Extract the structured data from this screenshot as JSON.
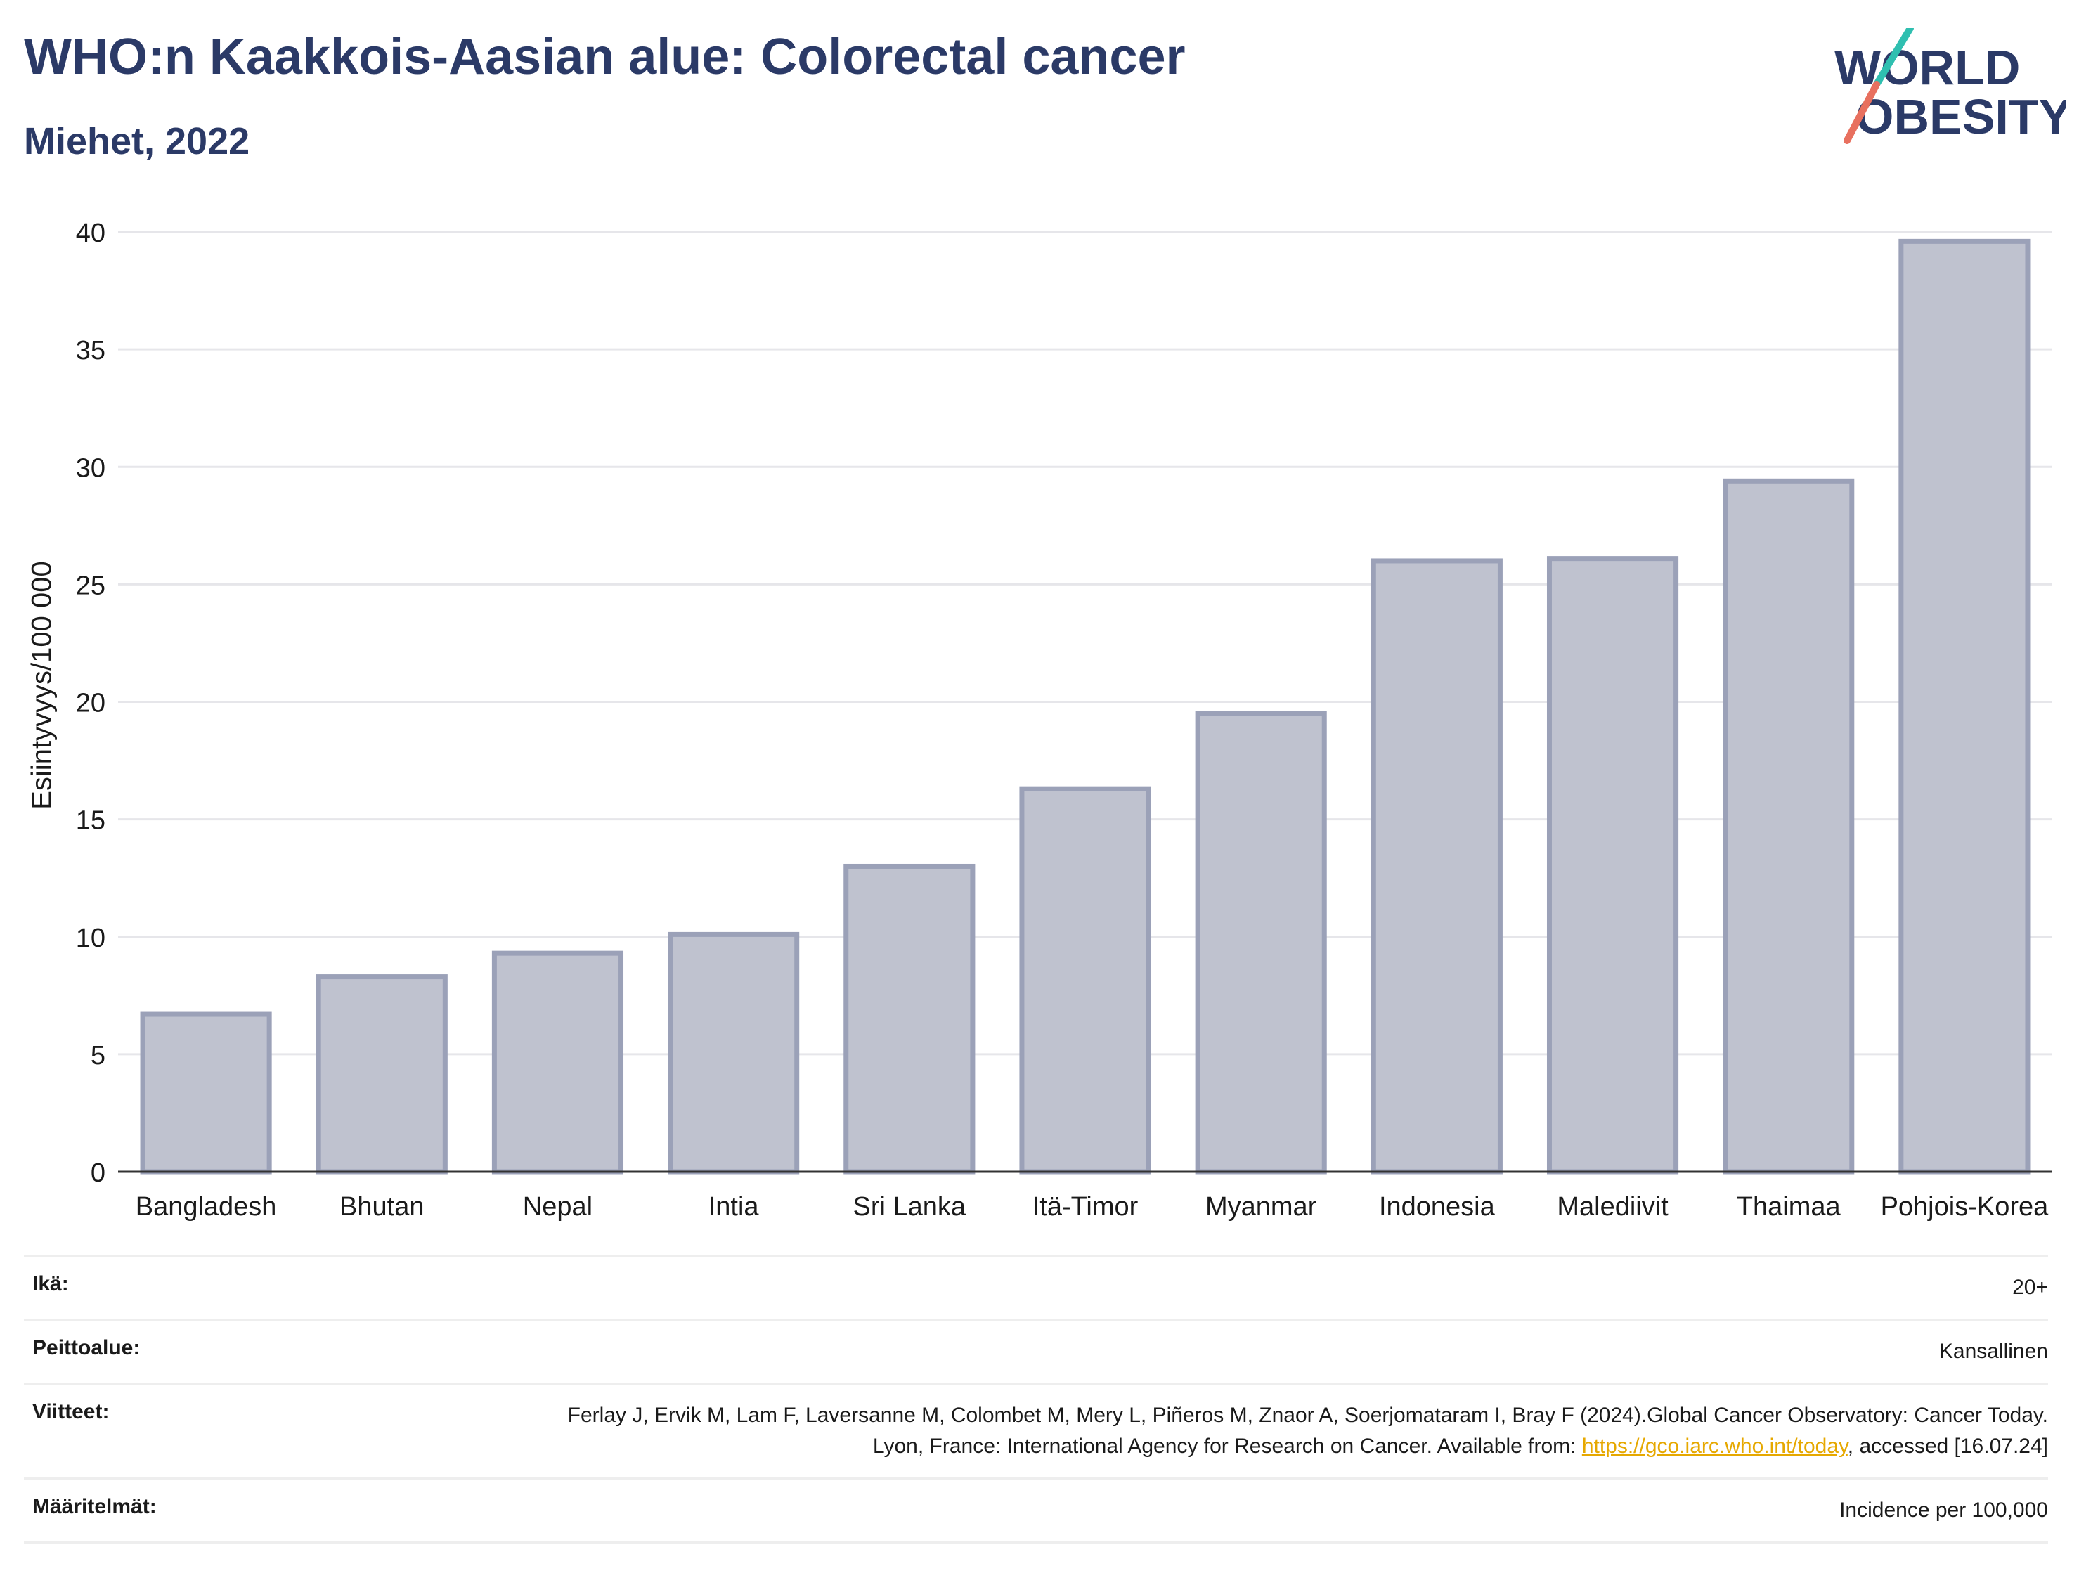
{
  "title": "WHO:n Kaakkois-Aasian alue: Colorectal cancer",
  "subtitle": "Miehet, 2022",
  "logo": {
    "line1": "WORLD",
    "line2": "OBESITY"
  },
  "chart_data": {
    "type": "bar",
    "categories": [
      "Bangladesh",
      "Bhutan",
      "Nepal",
      "Intia",
      "Sri Lanka",
      "Itä-Timor",
      "Myanmar",
      "Indonesia",
      "Malediivit",
      "Thaimaa",
      "Pohjois-Korea"
    ],
    "values": [
      6.7,
      8.3,
      9.3,
      10.1,
      13.0,
      16.3,
      19.5,
      26.0,
      26.1,
      29.4,
      39.6
    ],
    "ylabel": "Esiintyvyys/100 000",
    "xlabel": "",
    "ylim": [
      0,
      40
    ],
    "yticks": [
      0,
      5,
      10,
      15,
      20,
      25,
      30,
      35,
      40
    ],
    "grid": true,
    "colors": {
      "bar_fill": "#bfc2cf",
      "bar_stroke": "#9ba1b8",
      "grid": "#e6e6ea",
      "axis": "#333333"
    }
  },
  "meta": {
    "age_label": "Ikä:",
    "age_value": "20+",
    "coverage_label": "Peittoalue:",
    "coverage_value": "Kansallinen",
    "refs_label": "Viitteet:",
    "refs_text_1": "Ferlay J, Ervik M, Lam F, Laversanne M, Colombet M, Mery L, Piñeros M, Znaor A, Soerjomataram I, Bray F (2024).Global Cancer Observatory: Cancer Today. Lyon, France: International Agency for Research on Cancer. Available from: ",
    "refs_link": "https://gco.iarc.who.int/today",
    "refs_text_2": ", accessed [16.07.24]",
    "defs_label": "Määritelmät:",
    "defs_value": "Incidence per 100,000"
  }
}
